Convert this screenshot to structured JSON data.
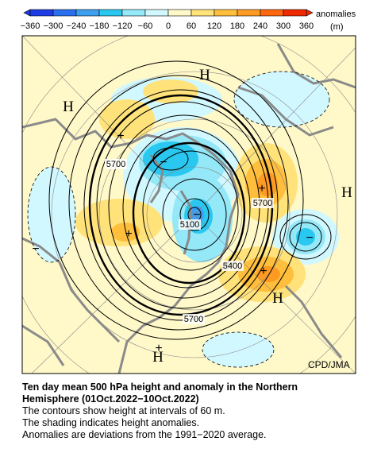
{
  "colorbar": {
    "label_top": "anomalies",
    "label_bottom": "(m)",
    "ticks": [
      "−360",
      "−300",
      "−240",
      "−180",
      "−120",
      "−60",
      "0",
      "60",
      "120",
      "180",
      "240",
      "300",
      "360"
    ],
    "colors": [
      "#1e3ce6",
      "#2a6ff0",
      "#3c9ff0",
      "#2ac8f0",
      "#94e8f8",
      "#d2f8ff",
      "#fff8c8",
      "#ffe27a",
      "#ffbf3c",
      "#ff9a22",
      "#ff6610",
      "#f02a00"
    ]
  },
  "map": {
    "labels": [
      "H",
      "H",
      "H",
      "H",
      "H",
      "+",
      "+",
      "+",
      "+",
      "+",
      "−",
      "−",
      "−",
      "−"
    ],
    "contour_labels": [
      "5700",
      "5100",
      "5700",
      "5400",
      "5700"
    ],
    "credit": "CPD/JMA"
  },
  "caption": {
    "title_lines": [
      "Ten day mean 500 hPa height and anomaly in the Northern",
      "Hemisphere (01Oct.2022−10Oct.2022)"
    ],
    "lines": [
      "The contours show height at intervals of 60 m.",
      "The shading indicates height anomalies.",
      "Anomalies are deviations from the 1991−2020 average."
    ]
  }
}
